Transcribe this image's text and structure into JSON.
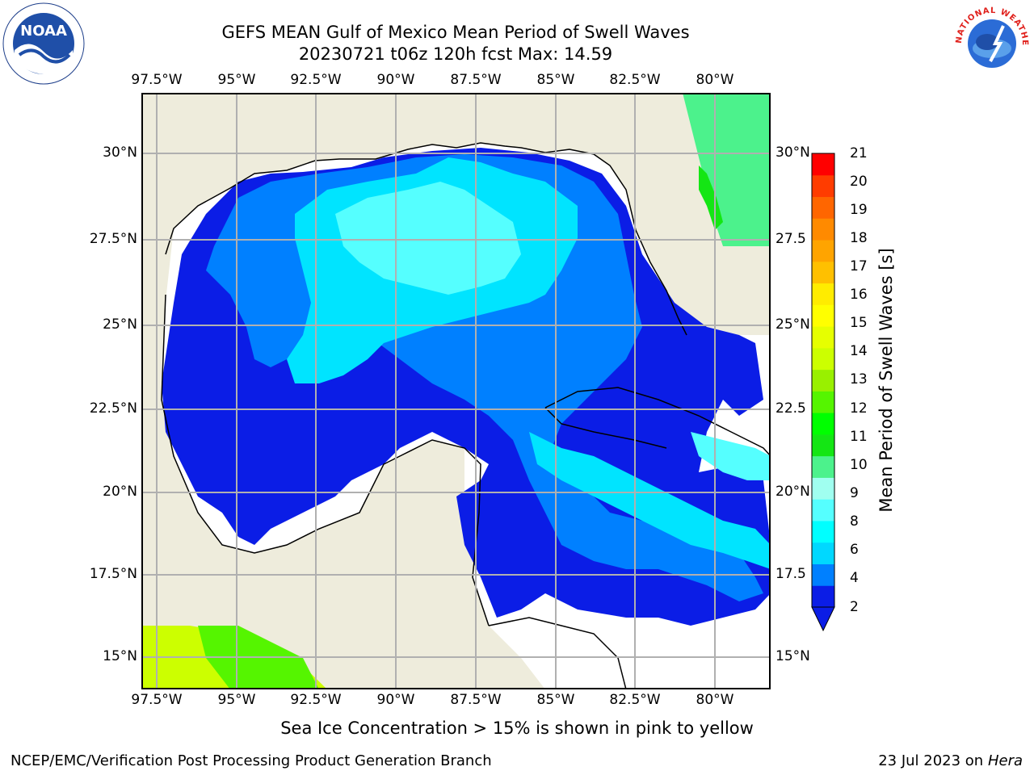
{
  "header": {
    "title_line1": "GEFS MEAN Gulf of Mexico Mean Period of Swell Waves",
    "title_line2": "20230721 t06z 120h fcst   Max: 14.59"
  },
  "map": {
    "lon_labels": [
      "97.5°W",
      "95°W",
      "92.5°W",
      "90°W",
      "87.5°W",
      "85°W",
      "82.5°W",
      "80°W"
    ],
    "lat_labels_left": [
      "30°N",
      "27.5°N",
      "25°N",
      "22.5°N",
      "20°N",
      "17.5°N",
      "15°N"
    ],
    "lat_labels_right": [
      "30°N",
      "27.5",
      "25°N",
      "22.5",
      "20°N",
      "17.5",
      "15°N"
    ],
    "colors": {
      "land": "#eeecdc",
      "no_data": "#ffffff",
      "grid": "#b0b0b0",
      "coast": "#000000"
    }
  },
  "colorbar": {
    "label": "Mean Period of Swell Waves [s]",
    "tick_labels": [
      "2",
      "4",
      "6",
      "8",
      "9",
      "10",
      "11",
      "12",
      "13",
      "14",
      "15",
      "16",
      "17",
      "18",
      "19",
      "20",
      "21"
    ],
    "colors": [
      "#0b1de6",
      "#0080ff",
      "#00d8ff",
      "#00ffff",
      "#55ffff",
      "#a0fff0",
      "#4cf28c",
      "#14e614",
      "#00ff00",
      "#55f500",
      "#99f000",
      "#ccff00",
      "#e6ff00",
      "#ffff00",
      "#ffec00",
      "#ffc000",
      "#ffa400",
      "#ff8a00",
      "#ff6600",
      "#ff3c00",
      "#ff0000"
    ]
  },
  "footer": {
    "note": "Sea Ice Concentration > 15% is shown in pink to yellow",
    "credit": "NCEP/EMC/Verification Post Processing Product Generation Branch",
    "date_prefix": "23 Jul 2023 on ",
    "host": "Hera"
  },
  "logos": {
    "left": "noa-logo",
    "right": "nws-logo",
    "left_text": "NOAA",
    "right_text": "NATIONAL WEATHER SERVICE"
  }
}
